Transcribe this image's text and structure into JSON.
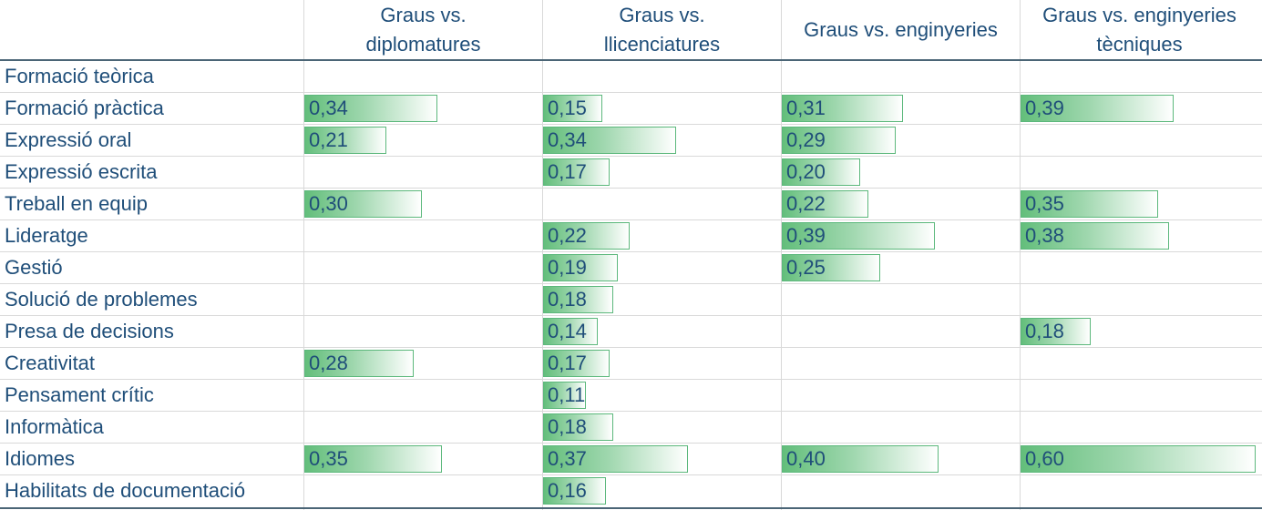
{
  "chart_data": {
    "type": "table",
    "bar_scale_max": 0.6,
    "bar_color": "#63be7b",
    "text_color": "#1f4e79",
    "columns": [
      "Graus vs.\ndiplomatures",
      "Graus vs.\nllicenciatures",
      "Graus vs.  enginyeries",
      "Graus vs. enginyeries\ntècniques"
    ],
    "rows": [
      {
        "label": "Formació teòrica",
        "values": [
          null,
          null,
          null,
          null
        ],
        "display": [
          null,
          null,
          null,
          null
        ]
      },
      {
        "label": "Formació pràctica",
        "values": [
          0.34,
          0.15,
          0.31,
          0.39
        ],
        "display": [
          "0,34",
          "0,15",
          "0,31",
          "0,39"
        ]
      },
      {
        "label": "Expressió oral",
        "values": [
          0.21,
          0.34,
          0.29,
          null
        ],
        "display": [
          "0,21",
          "0,34",
          "0,29",
          null
        ]
      },
      {
        "label": "Expressió escrita",
        "values": [
          null,
          0.17,
          0.2,
          null
        ],
        "display": [
          null,
          "0,17",
          "0,20",
          null
        ]
      },
      {
        "label": "Treball en equip",
        "values": [
          0.3,
          null,
          0.22,
          0.35
        ],
        "display": [
          "0,30",
          null,
          "0,22",
          "0,35"
        ]
      },
      {
        "label": "Lideratge",
        "values": [
          null,
          0.22,
          0.39,
          0.38
        ],
        "display": [
          null,
          "0,22",
          "0,39",
          "0,38"
        ]
      },
      {
        "label": "Gestió",
        "values": [
          null,
          0.19,
          0.25,
          null
        ],
        "display": [
          null,
          "0,19",
          "0,25",
          null
        ]
      },
      {
        "label": "Solució de problemes",
        "values": [
          null,
          0.18,
          null,
          null
        ],
        "display": [
          null,
          "0,18",
          null,
          null
        ]
      },
      {
        "label": "Presa de decisions",
        "values": [
          null,
          0.14,
          null,
          0.18
        ],
        "display": [
          null,
          "0,14",
          null,
          "0,18"
        ]
      },
      {
        "label": "Creativitat",
        "values": [
          0.28,
          0.17,
          null,
          null
        ],
        "display": [
          "0,28",
          "0,17",
          null,
          null
        ]
      },
      {
        "label": "Pensament crític",
        "values": [
          null,
          0.11,
          null,
          null
        ],
        "display": [
          null,
          "0,11",
          null,
          null
        ]
      },
      {
        "label": "Informàtica",
        "values": [
          null,
          0.18,
          null,
          null
        ],
        "display": [
          null,
          "0,18",
          null,
          null
        ]
      },
      {
        "label": "Idiomes",
        "values": [
          0.35,
          0.37,
          0.4,
          0.6
        ],
        "display": [
          "0,35",
          "0,37",
          "0,40",
          "0,60"
        ]
      },
      {
        "label": "Habilitats de documentació",
        "values": [
          null,
          0.16,
          null,
          null
        ],
        "display": [
          null,
          "0,16",
          null,
          null
        ]
      }
    ]
  }
}
